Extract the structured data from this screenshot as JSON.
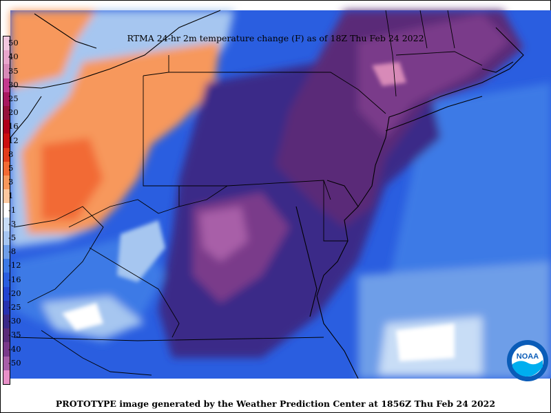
{
  "title": "RTMA 24-hr 2m temperature change (F) as of 18Z Thu Feb 24 2022",
  "footer": "PROTOTYPE image generated by the Weather Prediction Center at 1856Z Thu Feb 24 2022",
  "logo": {
    "text": "NOAA",
    "colors": {
      "outer": "#0a5cb8",
      "inner": "#ffffff",
      "band": "#00aeef"
    }
  },
  "legend": {
    "items": [
      {
        "label": "50",
        "color": "#f2c8e0"
      },
      {
        "label": "40",
        "color": "#e8a6cc"
      },
      {
        "label": "35",
        "color": "#d88ab8"
      },
      {
        "label": "30",
        "color": "#c43a8e"
      },
      {
        "label": "25",
        "color": "#a81860"
      },
      {
        "label": "20",
        "color": "#96123c"
      },
      {
        "label": "16",
        "color": "#b00018"
      },
      {
        "label": "12",
        "color": "#cc1010"
      },
      {
        "label": "8",
        "color": "#e23c1a"
      },
      {
        "label": "5",
        "color": "#f26a34"
      },
      {
        "label": "3",
        "color": "#f7985c"
      },
      {
        "label": "1",
        "color": "#fbc8a0"
      },
      {
        "label": "-1",
        "color": "#ffffff"
      },
      {
        "label": "-3",
        "color": "#c8ddf6"
      },
      {
        "label": "-5",
        "color": "#a6c6f0"
      },
      {
        "label": "-8",
        "color": "#6e9ee8"
      },
      {
        "label": "-12",
        "color": "#3d7ae6"
      },
      {
        "label": "-16",
        "color": "#2a5ee0"
      },
      {
        "label": "-20",
        "color": "#2244d2"
      },
      {
        "label": "-25",
        "color": "#2732b0"
      },
      {
        "label": "-30",
        "color": "#3a2a88"
      },
      {
        "label": "-35",
        "color": "#5a2c78"
      },
      {
        "label": "-40",
        "color": "#7a3a8a"
      },
      {
        "label": "-50",
        "color": "#a85ea8"
      },
      {
        "label": "",
        "color": "#e890c8"
      }
    ]
  }
}
